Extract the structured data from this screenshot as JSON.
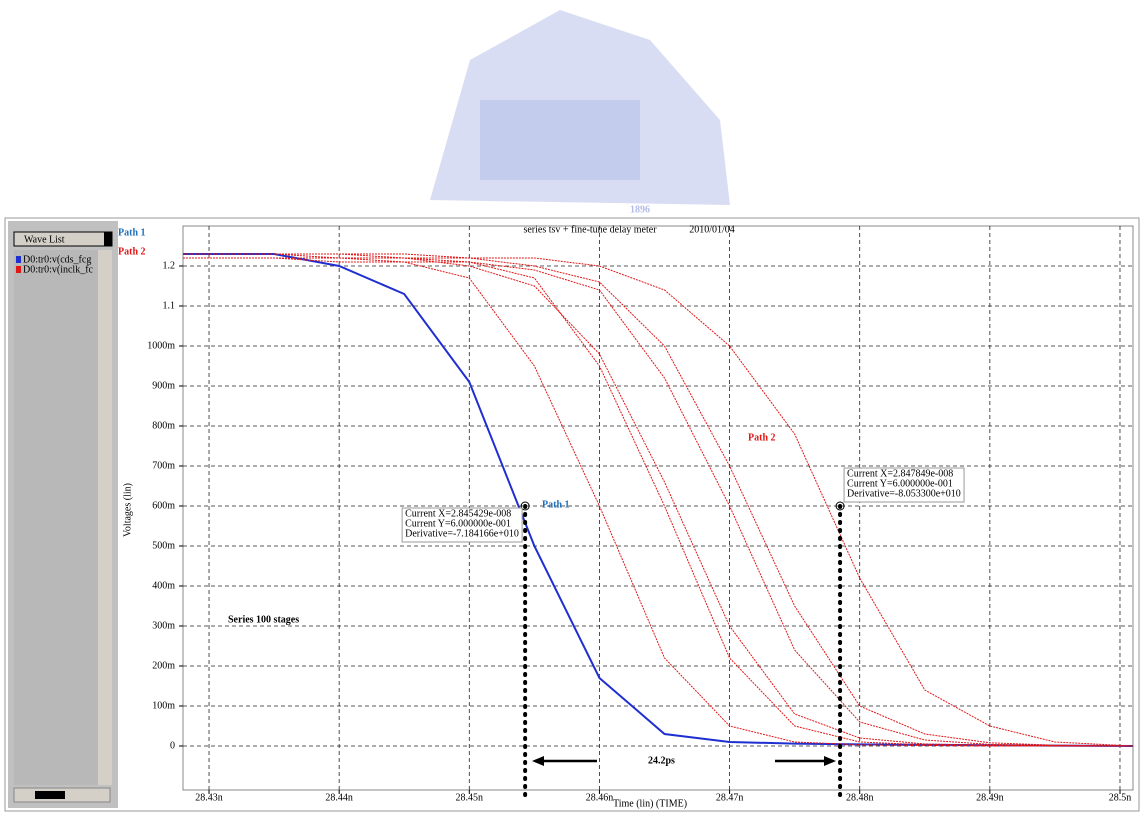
{
  "watermark": "1896",
  "chart_data": {
    "type": "line",
    "title": "series tsv + fine-tune delay meter",
    "date": "2010/01/04",
    "panel_title": "Wave List",
    "x_label": "Time (lin) (TIME)",
    "y_label": "Voltages (lin)",
    "xlim": [
      28.428,
      28.501
    ],
    "ylim": [
      -0.11,
      1.3
    ],
    "grid": true,
    "xticks": [
      {
        "value": 28.43,
        "label": "28.43n"
      },
      {
        "value": 28.44,
        "label": "28.44n"
      },
      {
        "value": 28.45,
        "label": "28.45n"
      },
      {
        "value": 28.46,
        "label": "28.46n"
      },
      {
        "value": 28.47,
        "label": "28.47n"
      },
      {
        "value": 28.48,
        "label": "28.48n"
      },
      {
        "value": 28.49,
        "label": "28.49n"
      },
      {
        "value": 28.5,
        "label": "28.5n"
      }
    ],
    "yticks": [
      0,
      {
        "value": 0.1,
        "label": "100m"
      },
      {
        "value": 0.2,
        "label": "200m"
      },
      {
        "value": 0.3,
        "label": "300m"
      },
      {
        "value": 0.4,
        "label": "400m"
      },
      {
        "value": 0.5,
        "label": "500m"
      },
      {
        "value": 0.6,
        "label": "600m"
      },
      {
        "value": 0.7,
        "label": "700m"
      },
      {
        "value": 0.8,
        "label": "800m"
      },
      {
        "value": 0.9,
        "label": "900m"
      },
      {
        "value": 1.0,
        "label": "1000m"
      },
      1.1,
      1.2
    ],
    "x": [
      28.428,
      28.435,
      28.44,
      28.445,
      28.45,
      28.455,
      28.46,
      28.465,
      28.47,
      28.475,
      28.48,
      28.485,
      28.49,
      28.495,
      28.501
    ],
    "series": [
      {
        "name": "D0:tr0:v(cds_fcg",
        "color": "#1f2fd0",
        "values": [
          1.23,
          1.23,
          1.2,
          1.13,
          0.91,
          0.5,
          0.17,
          0.03,
          0.01,
          0.006,
          0.004,
          0.003,
          0.002,
          0.001,
          0
        ]
      },
      {
        "name": "D0:tr0:v(inclk_fc",
        "color": "#e01818",
        "values": [
          1.22,
          1.22,
          1.21,
          1.21,
          1.17,
          0.95,
          0.6,
          0.22,
          0.05,
          0.01,
          0.003,
          0.001,
          0,
          0,
          0
        ]
      },
      {
        "color": "#e01818",
        "values": [
          1.22,
          1.22,
          1.22,
          1.21,
          1.21,
          1.17,
          0.95,
          0.6,
          0.22,
          0.05,
          0.01,
          0.003,
          0.001,
          0,
          0
        ]
      },
      {
        "color": "#e01818",
        "values": [
          1.23,
          1.23,
          1.22,
          1.22,
          1.2,
          1.15,
          0.98,
          0.66,
          0.3,
          0.08,
          0.02,
          0.005,
          0.002,
          0.001,
          0
        ]
      },
      {
        "color": "#e01818",
        "values": [
          1.22,
          1.22,
          1.22,
          1.22,
          1.21,
          1.19,
          1.14,
          0.92,
          0.6,
          0.24,
          0.06,
          0.015,
          0.004,
          0.001,
          0
        ]
      },
      {
        "color": "#e01818",
        "values": [
          1.23,
          1.23,
          1.23,
          1.22,
          1.22,
          1.2,
          1.16,
          1.0,
          0.7,
          0.35,
          0.1,
          0.03,
          0.008,
          0.002,
          0
        ]
      },
      {
        "color": "#e01818",
        "values": [
          1.23,
          1.23,
          1.23,
          1.23,
          1.22,
          1.22,
          1.2,
          1.14,
          1.0,
          0.78,
          0.42,
          0.14,
          0.05,
          0.01,
          0
        ]
      }
    ],
    "cursors": [
      {
        "x": 28.45429,
        "y": 0.6,
        "labels": [
          "Current X=2.845429e-008",
          "Current Y=6.000000e-001",
          "Derivative=-7.184166e+010"
        ]
      },
      {
        "x": 28.47849,
        "y": 0.6,
        "labels": [
          "Current X=2.847849e-008",
          "Current Y=6.000000e-001",
          "Derivative=-8.053300e+010"
        ]
      }
    ],
    "annotations": {
      "path1": "Path 1",
      "path2": "Path 2",
      "stages": "Series 100 stages",
      "delay": "24.2ps"
    }
  }
}
